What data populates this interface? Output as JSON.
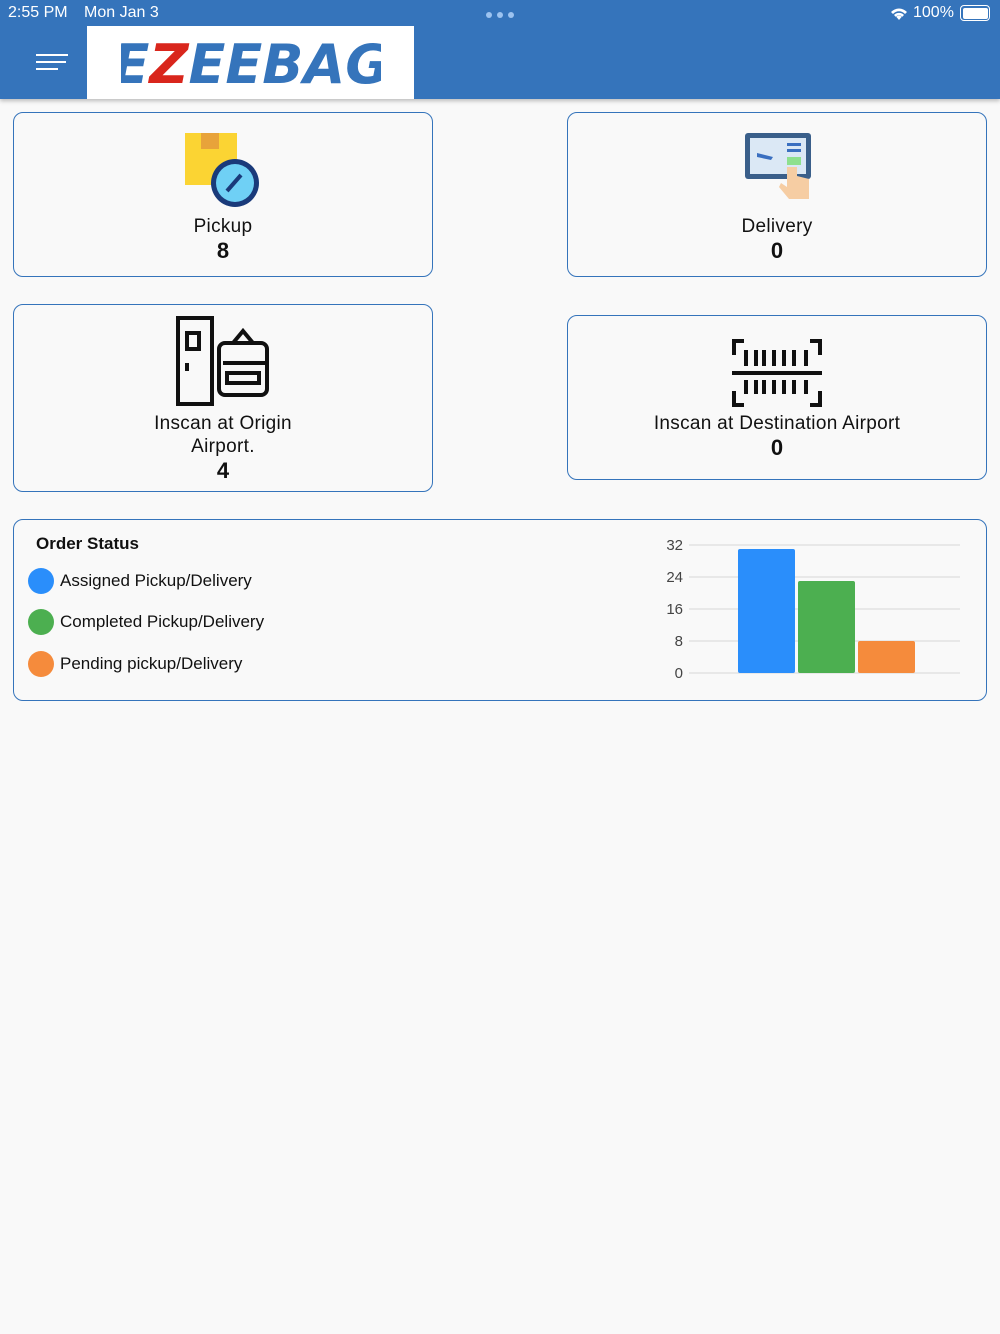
{
  "status_bar": {
    "time": "2:55 PM",
    "date": "Mon Jan 3",
    "battery": "100%"
  },
  "header": {
    "logo_text": "EZEEBAG",
    "menu_icon": "hamburger-icon"
  },
  "cards": [
    {
      "label": "Pickup",
      "count": "8",
      "icon": "package-clock-icon"
    },
    {
      "label": "Delivery",
      "count": "0",
      "icon": "boarding-pass-tap-icon"
    },
    {
      "label": "Inscan at Origin Airport.",
      "count": "4",
      "icon": "luggage-scanner-icon"
    },
    {
      "label": "Inscan at Destination Airport",
      "count": "0",
      "icon": "barcode-scan-icon"
    }
  ],
  "order_status": {
    "title": "Order Status",
    "legend": [
      {
        "label": "Assigned Pickup/Delivery",
        "color": "#2a8efb"
      },
      {
        "label": "Completed Pickup/Delivery",
        "color": "#4caf50"
      },
      {
        "label": "Pending pickup/Delivery",
        "color": "#f58b3c"
      }
    ]
  },
  "chart_data": {
    "type": "bar",
    "categories": [
      "Assigned Pickup/Delivery",
      "Completed Pickup/Delivery",
      "Pending pickup/Delivery"
    ],
    "values": [
      31,
      23,
      8
    ],
    "colors": [
      "#2a8efb",
      "#4caf50",
      "#f58b3c"
    ],
    "yticks": [
      "0",
      "8",
      "16",
      "24",
      "32"
    ],
    "ylim": [
      0,
      32
    ],
    "grid": true
  }
}
